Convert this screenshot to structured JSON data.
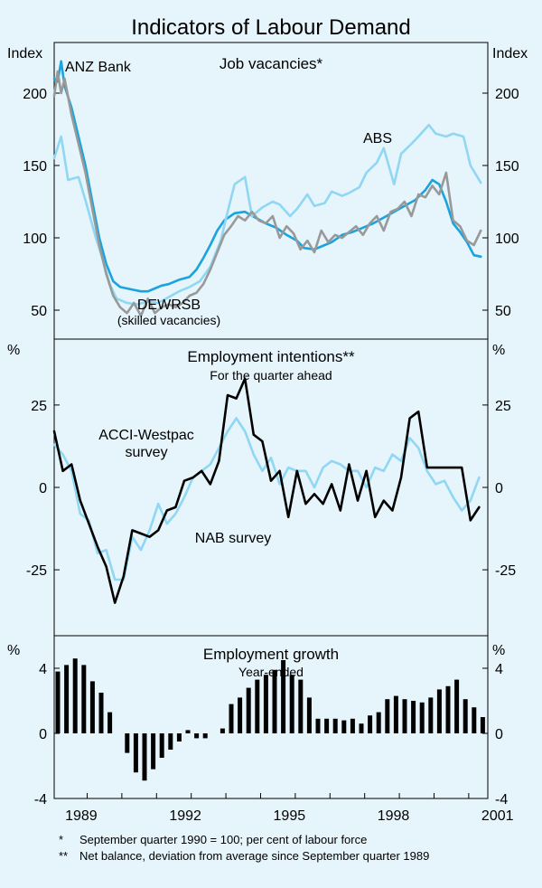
{
  "chart_data": {
    "title": "Indicators of Labour Demand",
    "x_axis": {
      "range": [
        1989.0,
        2001.5
      ],
      "tick_labels": [
        "1989",
        "1992",
        "1995",
        "1998",
        "2001"
      ]
    },
    "footnotes": {
      "star_mark": "*",
      "star_text": "September quarter 1990 = 100; per cent of labour force",
      "dstar_mark": "**",
      "dstar_text": "Net balance, deviation from average since September quarter 1989"
    },
    "panels": [
      {
        "id": "job-vacancies",
        "type": "line",
        "title": "Job vacancies*",
        "subtitle": "",
        "unit_left": "Index",
        "unit_right": "Index",
        "ylim": [
          30,
          235
        ],
        "y_ticks": [
          50,
          100,
          150,
          200
        ],
        "y_tick_labels": [
          "50",
          "100",
          "150",
          "200"
        ],
        "series": [
          {
            "name": "ANZ Bank",
            "label": "ANZ Bank",
            "color": "#1aa3dd",
            "width": 2.6,
            "x": [
              1989.0,
              1989.1,
              1989.2,
              1989.3,
              1989.5,
              1989.7,
              1989.9,
              1990.1,
              1990.3,
              1990.5,
              1990.7,
              1990.9,
              1991.1,
              1991.3,
              1991.5,
              1991.7,
              1991.9,
              1992.1,
              1992.3,
              1992.6,
              1992.9,
              1993.1,
              1993.3,
              1993.5,
              1993.7,
              1993.9,
              1994.2,
              1994.5,
              1994.8,
              1995.1,
              1995.4,
              1995.7,
              1996.0,
              1996.2,
              1996.5,
              1996.8,
              1997.0,
              1997.3,
              1997.6,
              1997.9,
              1998.2,
              1998.5,
              1998.8,
              1999.1,
              1999.4,
              1999.7,
              1999.9,
              2000.1,
              2000.3,
              2000.5,
              2000.7,
              2000.9,
              2001.1,
              2001.3
            ],
            "values": [
              210,
              208,
              222,
              205,
              190,
              170,
              150,
              125,
              100,
              82,
              70,
              66,
              65,
              64,
              63,
              63,
              65,
              67,
              68,
              71,
              73,
              78,
              86,
              95,
              105,
              112,
              117,
              118,
              114,
              110,
              107,
              102,
              98,
              93,
              92,
              95,
              97,
              102,
              104,
              107,
              110,
              114,
              118,
              122,
              126,
              133,
              140,
              137,
              125,
              110,
              104,
              97,
              88,
              87
            ]
          },
          {
            "name": "ABS",
            "label": "ABS",
            "color": "#8fd7f2",
            "width": 2.6,
            "x": [
              1989.0,
              1989.2,
              1989.4,
              1989.7,
              1989.9,
              1990.2,
              1990.4,
              1990.6,
              1990.8,
              1991.1,
              1991.4,
              1991.7,
              1992.0,
              1992.3,
              1992.6,
              1992.9,
              1993.2,
              1993.5,
              1993.8,
              1994.0,
              1994.2,
              1994.5,
              1994.7,
              1995.0,
              1995.3,
              1995.5,
              1995.8,
              1996.0,
              1996.3,
              1996.5,
              1996.8,
              1997.0,
              1997.3,
              1997.5,
              1997.8,
              1998.0,
              1998.3,
              1998.5,
              1998.8,
              1999.0,
              1999.3,
              1999.5,
              1999.8,
              2000.0,
              2000.3,
              2000.5,
              2000.8,
              2001.0,
              2001.3
            ],
            "values": [
              155,
              170,
              140,
              142,
              126,
              100,
              85,
              68,
              58,
              55,
              54,
              56,
              55,
              59,
              63,
              66,
              70,
              80,
              98,
              118,
              137,
              142,
              115,
              121,
              125,
              123,
              115,
              120,
              130,
              122,
              124,
              132,
              129,
              131,
              135,
              145,
              152,
              162,
              137,
              158,
              165,
              170,
              178,
              172,
              170,
              172,
              170,
              150,
              138
            ]
          },
          {
            "name": "DEWRSB",
            "label": "DEWRSB",
            "sublabel": "(skilled vacancies)",
            "color": "#999999",
            "width": 2.6,
            "x": [
              1989.0,
              1989.1,
              1989.2,
              1989.3,
              1989.5,
              1989.7,
              1989.9,
              1990.1,
              1990.3,
              1990.5,
              1990.7,
              1990.9,
              1991.1,
              1991.3,
              1991.5,
              1991.7,
              1991.9,
              1992.1,
              1992.3,
              1992.5,
              1992.7,
              1992.9,
              1993.1,
              1993.3,
              1993.5,
              1993.7,
              1993.9,
              1994.1,
              1994.3,
              1994.5,
              1994.7,
              1994.9,
              1995.1,
              1995.3,
              1995.5,
              1995.7,
              1995.9,
              1996.1,
              1996.3,
              1996.5,
              1996.7,
              1996.9,
              1997.1,
              1997.3,
              1997.5,
              1997.7,
              1997.9,
              1998.1,
              1998.3,
              1998.5,
              1998.7,
              1998.9,
              1999.1,
              1999.3,
              1999.5,
              1999.7,
              1999.9,
              2000.1,
              2000.3,
              2000.5,
              2000.7,
              2000.9,
              2001.1,
              2001.3
            ],
            "values": [
              198,
              215,
              200,
              210,
              185,
              165,
              145,
              120,
              95,
              75,
              60,
              52,
              48,
              55,
              46,
              58,
              48,
              52,
              54,
              52,
              55,
              60,
              62,
              68,
              78,
              90,
              102,
              108,
              115,
              112,
              118,
              112,
              110,
              115,
              100,
              108,
              103,
              92,
              98,
              90,
              105,
              97,
              102,
              100,
              104,
              108,
              102,
              110,
              115,
              105,
              118,
              120,
              125,
              115,
              130,
              128,
              136,
              130,
              145,
              112,
              108,
              98,
              95,
              105
            ]
          }
        ]
      },
      {
        "id": "employment-intentions",
        "type": "line",
        "title": "Employment intentions**",
        "subtitle": "For the quarter ahead",
        "unit_left": "%",
        "unit_right": "%",
        "ylim": [
          -45,
          45
        ],
        "y_ticks": [
          -25,
          0,
          25
        ],
        "y_tick_labels": [
          "-25",
          "0",
          "25"
        ],
        "series": [
          {
            "name": "NAB survey",
            "label": "NAB survey",
            "color": "#8fd7f2",
            "width": 2.6,
            "x": [
              1989.0,
              1989.25,
              1989.5,
              1989.75,
              1990.0,
              1990.25,
              1990.5,
              1990.75,
              1991.0,
              1991.25,
              1991.5,
              1991.75,
              1992.0,
              1992.25,
              1992.5,
              1992.75,
              1993.0,
              1993.25,
              1993.5,
              1993.75,
              1994.0,
              1994.25,
              1994.5,
              1994.75,
              1995.0,
              1995.25,
              1995.5,
              1995.75,
              1996.0,
              1996.25,
              1996.5,
              1996.75,
              1997.0,
              1997.25,
              1997.5,
              1997.75,
              1998.0,
              1998.25,
              1998.5,
              1998.75,
              1999.0,
              1999.25,
              1999.5,
              1999.75,
              2000.0,
              2000.25,
              2000.5,
              2000.75,
              2001.0,
              2001.25
            ],
            "values": [
              13,
              10,
              5,
              -8,
              -10,
              -20,
              -19,
              -28,
              -28,
              -15,
              -19,
              -13,
              -5,
              -11,
              -8,
              -3,
              3,
              5,
              7,
              12,
              17,
              21,
              17,
              10,
              5,
              9,
              1,
              6,
              5,
              5,
              0,
              6,
              8,
              7,
              5,
              5,
              0,
              6,
              5,
              10,
              8,
              15,
              12,
              5,
              1,
              2,
              -3,
              -7,
              -4,
              3
            ]
          },
          {
            "name": "ACCI-Westpac survey",
            "label": "ACCI-Westpac",
            "label2": "survey",
            "color": "#000000",
            "width": 2.6,
            "x": [
              1989.0,
              1989.25,
              1989.5,
              1989.75,
              1990.0,
              1990.25,
              1990.5,
              1990.75,
              1991.0,
              1991.25,
              1991.5,
              1991.75,
              1992.0,
              1992.25,
              1992.5,
              1992.75,
              1993.0,
              1993.25,
              1993.5,
              1993.75,
              1994.0,
              1994.25,
              1994.5,
              1994.75,
              1995.0,
              1995.25,
              1995.5,
              1995.75,
              1996.0,
              1996.25,
              1996.5,
              1996.75,
              1997.0,
              1997.25,
              1997.5,
              1997.75,
              1998.0,
              1998.25,
              1998.5,
              1998.75,
              1999.0,
              1999.25,
              1999.5,
              1999.75,
              2000.0,
              2000.25,
              2000.5,
              2000.75,
              2001.0,
              2001.25
            ],
            "values": [
              17,
              5,
              7,
              -4,
              -11,
              -18,
              -24,
              -35,
              -27,
              -13,
              -14,
              -15,
              -13,
              -7,
              -6,
              2,
              3,
              5,
              1,
              8,
              28,
              27,
              33,
              16,
              14,
              2,
              5,
              -9,
              5,
              -5,
              -2,
              -5,
              1,
              -7,
              7,
              -4,
              5,
              -9,
              -4,
              -7,
              3,
              21,
              23,
              6,
              6,
              6,
              6,
              6,
              -10,
              -6
            ]
          }
        ]
      },
      {
        "id": "employment-growth",
        "type": "bar",
        "title": "Employment growth",
        "subtitle": "Year-ended",
        "unit_left": "%",
        "unit_right": "%",
        "ylim": [
          -4,
          6
        ],
        "y_ticks": [
          -4,
          0,
          4
        ],
        "y_tick_labels": [
          "-4",
          "0",
          "4"
        ],
        "series": [
          {
            "name": "Employment growth",
            "color": "#000000",
            "x": [
              1989.0,
              1989.25,
              1989.5,
              1989.75,
              1990.0,
              1990.25,
              1990.5,
              1990.75,
              1991.0,
              1991.25,
              1991.5,
              1991.75,
              1992.0,
              1992.25,
              1992.5,
              1992.75,
              1993.0,
              1993.25,
              1993.5,
              1993.75,
              1994.0,
              1994.25,
              1994.5,
              1994.75,
              1995.0,
              1995.25,
              1995.5,
              1995.75,
              1996.0,
              1996.25,
              1996.5,
              1996.75,
              1997.0,
              1997.25,
              1997.5,
              1997.75,
              1998.0,
              1998.25,
              1998.5,
              1998.75,
              1999.0,
              1999.25,
              1999.5,
              1999.75,
              2000.0,
              2000.25,
              2000.5,
              2000.75,
              2001.0,
              2001.25
            ],
            "values": [
              3.8,
              4.2,
              4.6,
              4.2,
              3.2,
              2.5,
              1.3,
              0.0,
              -1.2,
              -2.4,
              -2.9,
              -2.2,
              -1.5,
              -1.0,
              -0.5,
              0.2,
              -0.3,
              -0.3,
              0.0,
              0.3,
              1.8,
              2.2,
              2.8,
              3.3,
              3.6,
              3.9,
              4.5,
              3.6,
              3.3,
              2.2,
              0.9,
              0.9,
              0.9,
              0.8,
              0.9,
              0.6,
              1.1,
              1.3,
              2.1,
              2.3,
              2.1,
              2.0,
              1.9,
              2.2,
              2.7,
              2.9,
              3.3,
              2.1,
              1.6,
              1.0
            ]
          }
        ]
      }
    ]
  }
}
